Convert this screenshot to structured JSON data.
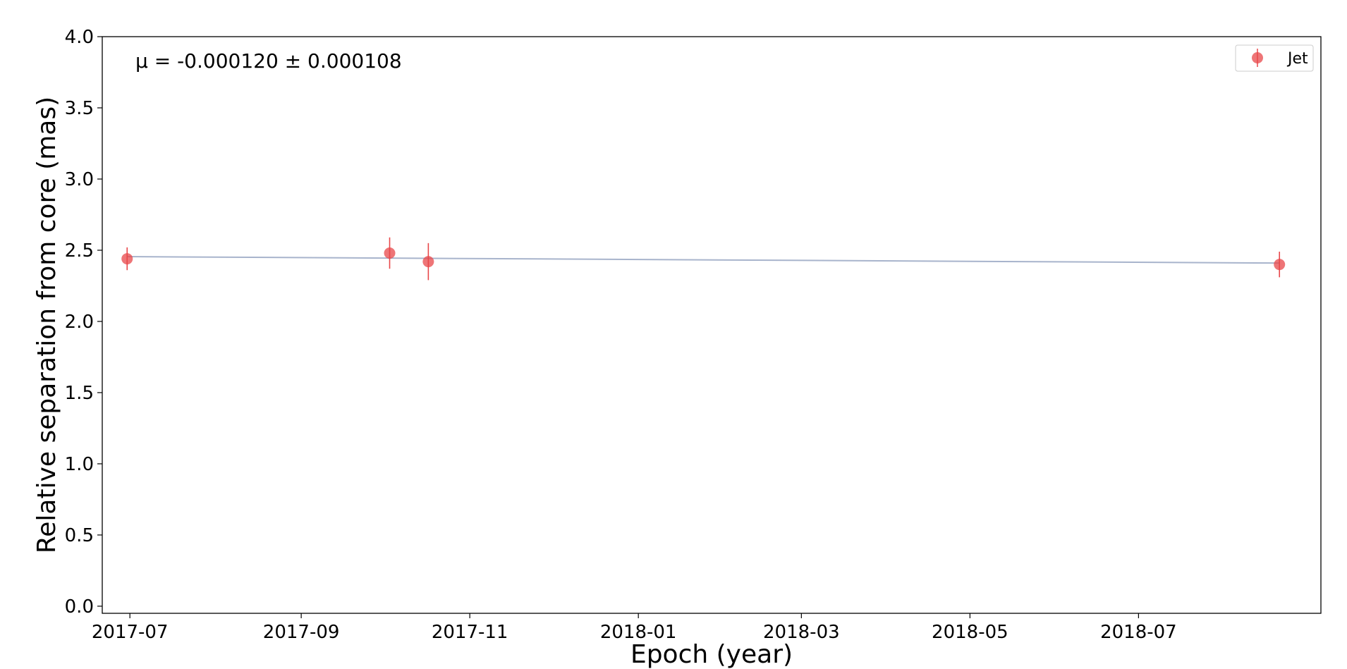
{
  "chart_data": {
    "type": "scatter",
    "xlabel": "Epoch (year)",
    "ylabel": "Relative separation from core (mas)",
    "xlim": [
      "2017-06-21",
      "2018-09-05"
    ],
    "ylim": [
      -0.05,
      4.0
    ],
    "x_ticks": [
      "2017-07",
      "2017-09",
      "2017-11",
      "2018-01",
      "2018-03",
      "2018-05",
      "2018-07"
    ],
    "x_tick_dates": [
      "2017-07-01",
      "2017-09-01",
      "2017-11-01",
      "2018-01-01",
      "2018-03-01",
      "2018-05-01",
      "2018-07-01"
    ],
    "y_ticks": [
      "0.0",
      "0.5",
      "1.0",
      "1.5",
      "2.0",
      "2.5",
      "3.0",
      "3.5",
      "4.0"
    ],
    "grid": false,
    "legend_position": "top-right",
    "annotation": "μ = -0.000120 ± 0.000108",
    "series": [
      {
        "name": "Jet",
        "color": "#e8474a",
        "points": [
          {
            "x": "2017-06-30",
            "y": 2.44,
            "err": 0.08
          },
          {
            "x": "2017-10-03",
            "y": 2.48,
            "err": 0.11
          },
          {
            "x": "2017-10-17",
            "y": 2.42,
            "err": 0.13
          },
          {
            "x": "2018-08-21",
            "y": 2.4,
            "err": 0.09
          }
        ]
      }
    ],
    "fit_line": {
      "color": "#a8b4cc",
      "x": [
        "2017-06-30",
        "2018-08-21"
      ],
      "y": [
        2.455,
        2.41
      ]
    }
  }
}
